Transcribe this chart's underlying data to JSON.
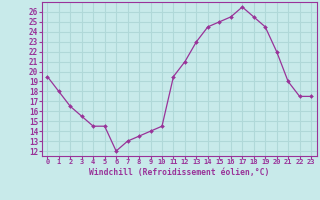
{
  "x": [
    0,
    1,
    2,
    3,
    4,
    5,
    6,
    7,
    8,
    9,
    10,
    11,
    12,
    13,
    14,
    15,
    16,
    17,
    18,
    19,
    20,
    21,
    22,
    23
  ],
  "y": [
    19.5,
    18,
    16.5,
    15.5,
    14.5,
    14.5,
    12,
    13,
    13.5,
    14,
    14.5,
    19.5,
    21,
    23,
    24.5,
    25,
    25.5,
    26.5,
    25.5,
    24.5,
    22,
    19,
    17.5,
    17.5
  ],
  "line_color": "#993399",
  "marker_color": "#993399",
  "bg_color": "#c8eaea",
  "grid_color": "#b0d8d8",
  "xlabel": "Windchill (Refroidissement éolien,°C)",
  "xlabel_color": "#993399",
  "tick_color": "#993399",
  "spine_color": "#993399",
  "ylim": [
    11.5,
    27
  ],
  "xlim": [
    -0.5,
    23.5
  ],
  "yticks": [
    12,
    13,
    14,
    15,
    16,
    17,
    18,
    19,
    20,
    21,
    22,
    23,
    24,
    25,
    26
  ],
  "xticks": [
    0,
    1,
    2,
    3,
    4,
    5,
    6,
    7,
    8,
    9,
    10,
    11,
    12,
    13,
    14,
    15,
    16,
    17,
    18,
    19,
    20,
    21,
    22,
    23
  ],
  "xtick_labels": [
    "0",
    "1",
    "2",
    "3",
    "4",
    "5",
    "6",
    "7",
    "8",
    "9",
    "10",
    "11",
    "12",
    "13",
    "14",
    "15",
    "16",
    "17",
    "18",
    "19",
    "20",
    "21",
    "22",
    "23"
  ]
}
